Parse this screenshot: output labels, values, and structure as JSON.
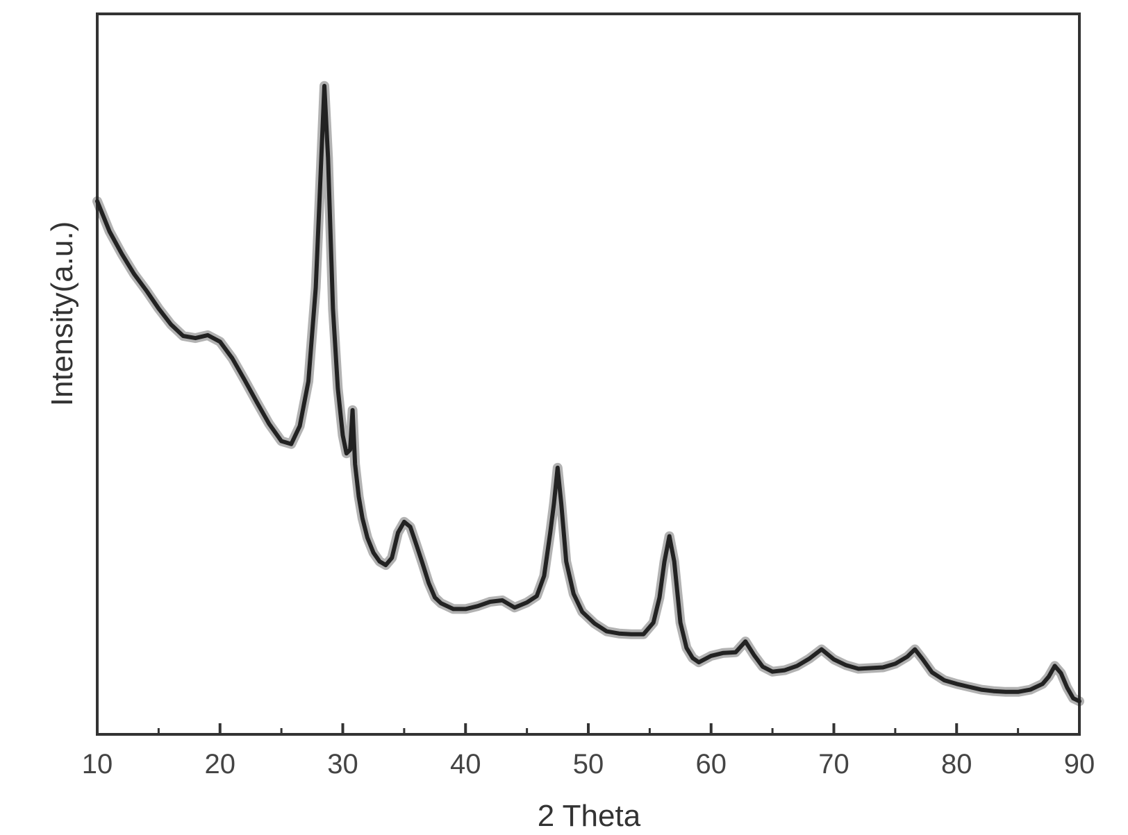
{
  "chart_data": {
    "type": "line",
    "title": "",
    "xlabel": "2 Theta",
    "ylabel": "Intensity(a.u.)",
    "xlim": [
      10,
      90
    ],
    "ylim": [
      0,
      100
    ],
    "x_ticks": [
      10,
      20,
      30,
      40,
      50,
      60,
      70,
      80,
      90
    ],
    "x_tick_labels": [
      "10",
      "20",
      "30",
      "40",
      "50",
      "60",
      "70",
      "80",
      "90"
    ],
    "x_minor_ticks": [
      15,
      25,
      35,
      45,
      55,
      65,
      75,
      85
    ],
    "y_ticks_shown": false,
    "grid": false,
    "legend": "none",
    "line_color": "#222222",
    "series": [
      {
        "x": [
          10,
          11,
          12,
          13,
          14,
          15,
          16,
          17,
          18,
          19,
          20,
          21,
          22,
          23,
          24,
          25,
          25.8,
          26.5,
          27.2,
          27.8,
          28.2,
          28.5,
          28.8,
          29.2,
          29.6,
          30.0,
          30.3,
          30.6,
          30.8,
          31.0,
          31.3,
          31.6,
          32.0,
          32.5,
          33.0,
          33.5,
          34.0,
          34.5,
          35.0,
          35.5,
          36.0,
          36.5,
          37.0,
          37.5,
          38.0,
          39.0,
          40.0,
          41.0,
          42.0,
          43.0,
          44.0,
          45.0,
          45.8,
          46.4,
          46.9,
          47.2,
          47.5,
          47.8,
          48.2,
          48.8,
          49.5,
          50.5,
          51.5,
          52.5,
          53.5,
          54.5,
          55.3,
          55.8,
          56.2,
          56.6,
          57.0,
          57.5,
          58.0,
          58.5,
          59.0,
          60.0,
          61.0,
          62.0,
          62.8,
          63.5,
          64.2,
          65.0,
          66.0,
          67.0,
          68.0,
          69.0,
          70.0,
          71.0,
          72.0,
          73.0,
          74.0,
          75.0,
          76.0,
          76.6,
          77.2,
          78.0,
          79.0,
          80.0,
          81.0,
          82.0,
          83.0,
          84.0,
          85.0,
          86.0,
          87.0,
          87.5,
          88.0,
          88.5,
          89.0,
          89.5,
          90.0
        ],
        "y": [
          74,
          69.8,
          66.7,
          63.9,
          61.6,
          59.1,
          56.9,
          55.3,
          55.0,
          55.4,
          54.5,
          52.2,
          49.2,
          46.1,
          43.1,
          40.7,
          40.3,
          42.8,
          49.0,
          62.0,
          78.0,
          90.0,
          80.0,
          59.0,
          48.0,
          41.5,
          39.0,
          39.5,
          45.0,
          37.5,
          33.0,
          30.0,
          27.3,
          25.2,
          24.0,
          23.5,
          24.5,
          28.0,
          29.5,
          28.8,
          26.3,
          23.7,
          21.0,
          19.0,
          18.2,
          17.4,
          17.4,
          17.8,
          18.4,
          18.6,
          17.6,
          18.3,
          19.2,
          22.0,
          28.0,
          32.0,
          37.0,
          32.0,
          24.0,
          19.5,
          17.0,
          15.4,
          14.3,
          14.0,
          13.9,
          13.9,
          15.5,
          19.0,
          24.0,
          27.5,
          24.0,
          15.5,
          12.0,
          10.6,
          10.0,
          10.9,
          11.3,
          11.4,
          12.9,
          11.0,
          9.4,
          8.7,
          8.9,
          9.5,
          10.5,
          11.8,
          10.4,
          9.6,
          9.1,
          9.2,
          9.3,
          9.8,
          10.8,
          11.8,
          10.5,
          8.6,
          7.5,
          7.0,
          6.6,
          6.2,
          6.0,
          5.9,
          5.9,
          6.2,
          7.0,
          8.0,
          9.5,
          8.5,
          6.5,
          5.0,
          4.6
        ]
      }
    ]
  }
}
